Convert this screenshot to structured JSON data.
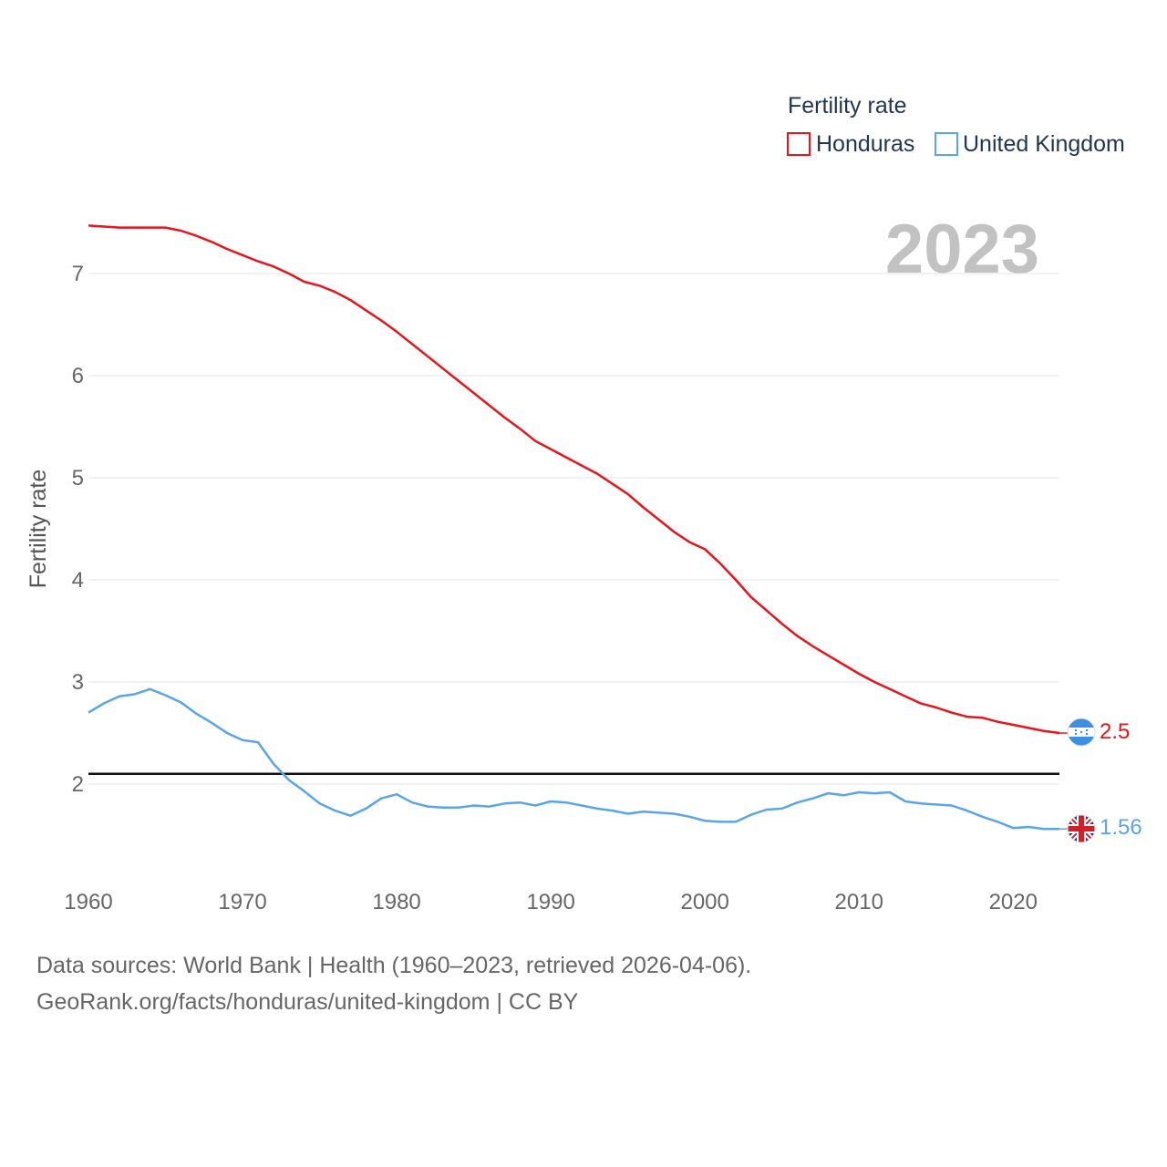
{
  "chart_data": {
    "type": "line",
    "legend_title": "Fertility rate",
    "ylabel": "Fertility rate",
    "xlabel": "",
    "year_label": "2023",
    "xlim": [
      1960,
      2023
    ],
    "ylim": [
      1.2,
      7.6
    ],
    "x_ticks": [
      "1960",
      "1970",
      "1980",
      "1990",
      "2000",
      "2010",
      "2020"
    ],
    "y_ticks": [
      "2",
      "3",
      "4",
      "5",
      "6",
      "7"
    ],
    "grid": true,
    "reference_line": 2.1,
    "legend_position": "top-right",
    "x": [
      1960,
      1961,
      1962,
      1963,
      1964,
      1965,
      1966,
      1967,
      1968,
      1969,
      1970,
      1971,
      1972,
      1973,
      1974,
      1975,
      1976,
      1977,
      1978,
      1979,
      1980,
      1981,
      1982,
      1983,
      1984,
      1985,
      1986,
      1987,
      1988,
      1989,
      1990,
      1991,
      1992,
      1993,
      1994,
      1995,
      1996,
      1997,
      1998,
      1999,
      2000,
      2001,
      2002,
      2003,
      2004,
      2005,
      2006,
      2007,
      2008,
      2009,
      2010,
      2011,
      2012,
      2013,
      2014,
      2015,
      2016,
      2017,
      2018,
      2019,
      2020,
      2021,
      2022,
      2023
    ],
    "series": [
      {
        "name": "Honduras",
        "color": "#e8141c",
        "end_label": "2.5",
        "values": [
          7.47,
          7.46,
          7.45,
          7.45,
          7.45,
          7.45,
          7.42,
          7.37,
          7.31,
          7.24,
          7.18,
          7.12,
          7.07,
          7.0,
          6.92,
          6.88,
          6.82,
          6.74,
          6.64,
          6.54,
          6.43,
          6.31,
          6.19,
          6.07,
          5.95,
          5.83,
          5.71,
          5.59,
          5.48,
          5.36,
          5.28,
          5.2,
          5.12,
          5.04,
          4.94,
          4.84,
          4.71,
          4.59,
          4.47,
          4.37,
          4.3,
          4.16,
          4.0,
          3.83,
          3.7,
          3.57,
          3.45,
          3.35,
          3.26,
          3.17,
          3.08,
          3.0,
          2.93,
          2.86,
          2.79,
          2.75,
          2.7,
          2.66,
          2.65,
          2.61,
          2.58,
          2.55,
          2.52,
          2.5
        ]
      },
      {
        "name": "United Kingdom",
        "color": "#5aa5e8",
        "end_label": "1.56",
        "values": [
          2.7,
          2.79,
          2.86,
          2.88,
          2.93,
          2.87,
          2.8,
          2.69,
          2.6,
          2.5,
          2.43,
          2.41,
          2.2,
          2.04,
          1.93,
          1.81,
          1.74,
          1.69,
          1.76,
          1.86,
          1.9,
          1.82,
          1.78,
          1.77,
          1.77,
          1.79,
          1.78,
          1.81,
          1.82,
          1.79,
          1.83,
          1.82,
          1.79,
          1.76,
          1.74,
          1.71,
          1.73,
          1.72,
          1.71,
          1.68,
          1.64,
          1.63,
          1.63,
          1.7,
          1.75,
          1.76,
          1.82,
          1.86,
          1.91,
          1.89,
          1.92,
          1.91,
          1.92,
          1.83,
          1.81,
          1.8,
          1.79,
          1.74,
          1.68,
          1.63,
          1.57,
          1.58,
          1.56,
          1.56
        ]
      }
    ]
  },
  "footer": {
    "sources": "Data sources: World Bank | Health (1960–2023, retrieved 2026-04-06).",
    "url": "GeoRank.org/facts/honduras/united-kingdom | CC BY"
  }
}
